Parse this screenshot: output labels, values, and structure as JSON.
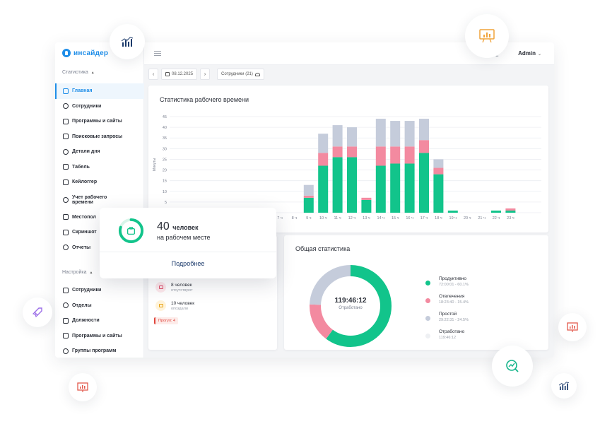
{
  "app": {
    "logo_text": "инсайдер",
    "admin": "Admin"
  },
  "sidebar": {
    "section1": "Статистика",
    "items1": [
      {
        "label": "Главная",
        "active": true
      },
      {
        "label": "Сотрудники"
      },
      {
        "label": "Программы и сайты"
      },
      {
        "label": "Поисковые запросы"
      },
      {
        "label": "Детали дня"
      },
      {
        "label": "Табель"
      },
      {
        "label": "Кейлоггер"
      },
      {
        "label": "Учет рабочего времени"
      },
      {
        "label": "Местопол"
      },
      {
        "label": "Скриншот"
      },
      {
        "label": "Отчеты"
      }
    ],
    "section2": "Настройка",
    "items2": [
      {
        "label": "Сотрудники"
      },
      {
        "label": "Отделы"
      },
      {
        "label": "Должности"
      },
      {
        "label": "Программы и сайты"
      },
      {
        "label": "Группы программ"
      }
    ]
  },
  "filters": {
    "prev": "‹",
    "date": "08.12.2025",
    "next": "›",
    "employees": "Сотрудники (21)"
  },
  "worktime": {
    "title": "Статистика рабочего времени"
  },
  "chart_data": {
    "type": "bar",
    "stacked": true,
    "ylabel": "Минуты",
    "ylim": [
      0,
      45
    ],
    "yticks": [
      0,
      5,
      10,
      15,
      20,
      25,
      30,
      35,
      40,
      45
    ],
    "categories": [
      "7 ч",
      "8 ч",
      "9 ч",
      "10 ч",
      "11 ч",
      "12 ч",
      "13 ч",
      "14 ч",
      "15 ч",
      "16 ч",
      "17 ч",
      "18 ч",
      "19 ч",
      "20 ч",
      "21 ч",
      "22 ч",
      "23 ч"
    ],
    "series": [
      {
        "color": "#12c48b",
        "values": [
          0,
          0,
          7,
          22,
          26,
          26,
          6,
          22,
          23,
          23,
          28,
          18,
          1,
          0,
          0,
          1,
          1
        ]
      },
      {
        "color": "#f38aa0",
        "values": [
          0,
          0,
          1,
          6,
          5,
          5,
          1,
          9,
          8,
          8,
          6,
          3,
          0,
          0,
          0,
          0,
          1
        ]
      },
      {
        "color": "#c5ccdb",
        "values": [
          0,
          0,
          5,
          9,
          10,
          9,
          0,
          13,
          12,
          12,
          10,
          4,
          0,
          0,
          0,
          0,
          0
        ]
      }
    ],
    "grid": true
  },
  "summary": {
    "title": "Общая статистика",
    "center_time": "119:46:12",
    "center_label": "Отработано",
    "legend": [
      {
        "name": "Продуктивно",
        "value": "72:00:01 - 60.1%",
        "color": "#12c48b",
        "pct": 60.1
      },
      {
        "name": "Отвлечения",
        "value": "18:23:40 - 15.4%",
        "color": "#f38aa0",
        "pct": 15.4
      },
      {
        "name": "Простой",
        "value": "29:22:31 - 24.5%",
        "color": "#c5ccdb",
        "pct": 24.5
      },
      {
        "name": "Отработано",
        "value": "119:46:12",
        "color": "#eef0f3"
      }
    ]
  },
  "presence": {
    "absent_title": "8 человек",
    "absent_sub": "отсутствуют",
    "late_title": "10 человек",
    "late_sub": "опоздали",
    "badge": "Прогул: 4"
  },
  "popup": {
    "count": "40",
    "unit": "человек",
    "line2": "на рабочем месте",
    "link": "Подробнее",
    "ring_fraction": 0.8
  }
}
